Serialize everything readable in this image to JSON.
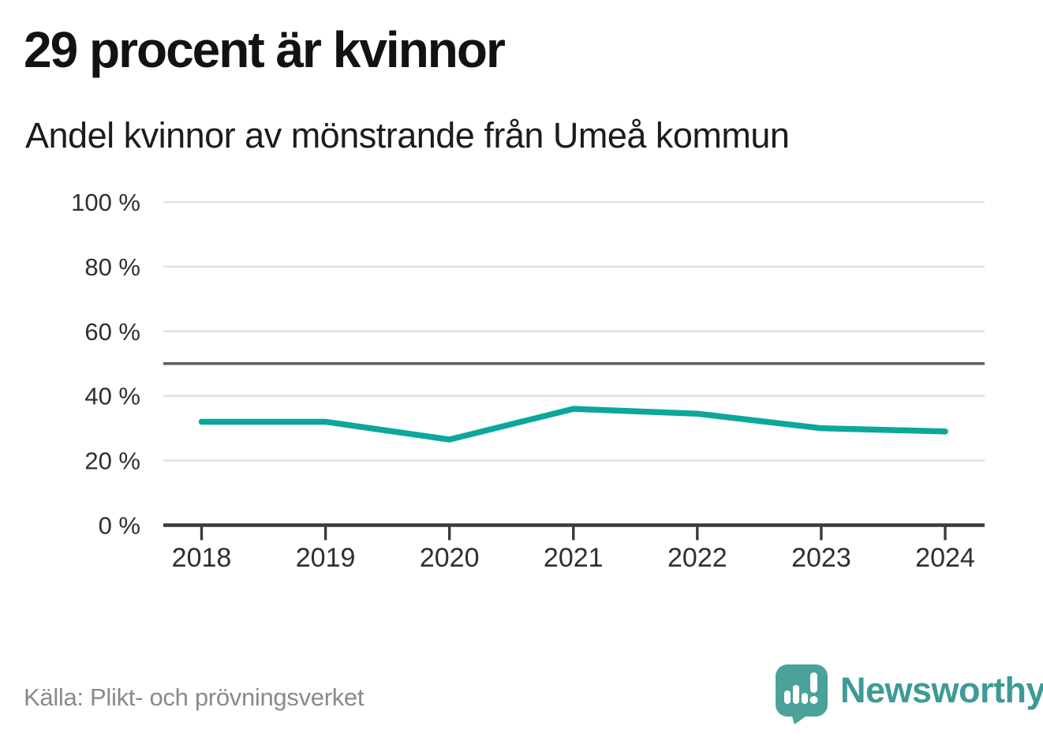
{
  "header": {
    "title": "29 procent är kvinnor",
    "subtitle": "Andel kvinnor av mönstrande från Umeå kommun"
  },
  "chart_data": {
    "type": "line",
    "title": "29 procent är kvinnor",
    "subtitle": "Andel kvinnor av mönstrande från Umeå kommun",
    "x": [
      2018,
      2019,
      2020,
      2021,
      2022,
      2023,
      2024
    ],
    "xtick_labels": [
      "2018",
      "2019",
      "2020",
      "2021",
      "2022",
      "2023",
      "2024"
    ],
    "series": [
      {
        "name": "Andel kvinnor av mönstrande",
        "values": [
          32,
          32,
          26.5,
          36,
          34.5,
          30,
          29
        ],
        "color": "#0ca79b"
      }
    ],
    "ylim": [
      0,
      100
    ],
    "yticks": [
      0,
      20,
      40,
      60,
      80,
      100
    ],
    "ytick_labels": [
      "0 %",
      "20 %",
      "40 %",
      "60 %",
      "80 %",
      "100 %"
    ],
    "reference_line": {
      "value": 50,
      "color": "#5e6065"
    },
    "grid": true,
    "legend": "none",
    "latest_value_pct": 29
  },
  "footer": {
    "source": "Källa: Plikt- och prövningsverket"
  },
  "branding": {
    "name": "Newsworthy",
    "logo_icon": "bar-chart-exclamation-bubble-icon",
    "text_color": "#3d9b95",
    "mark_color": "#4ba29b"
  },
  "colors": {
    "accent_line": "#0ca79b",
    "reference_line": "#5e6065",
    "axis": "#3a3a3a",
    "gridline": "#e2e2e2",
    "tick_text": "#2f2f2f",
    "source_text": "#8a8a8a"
  }
}
